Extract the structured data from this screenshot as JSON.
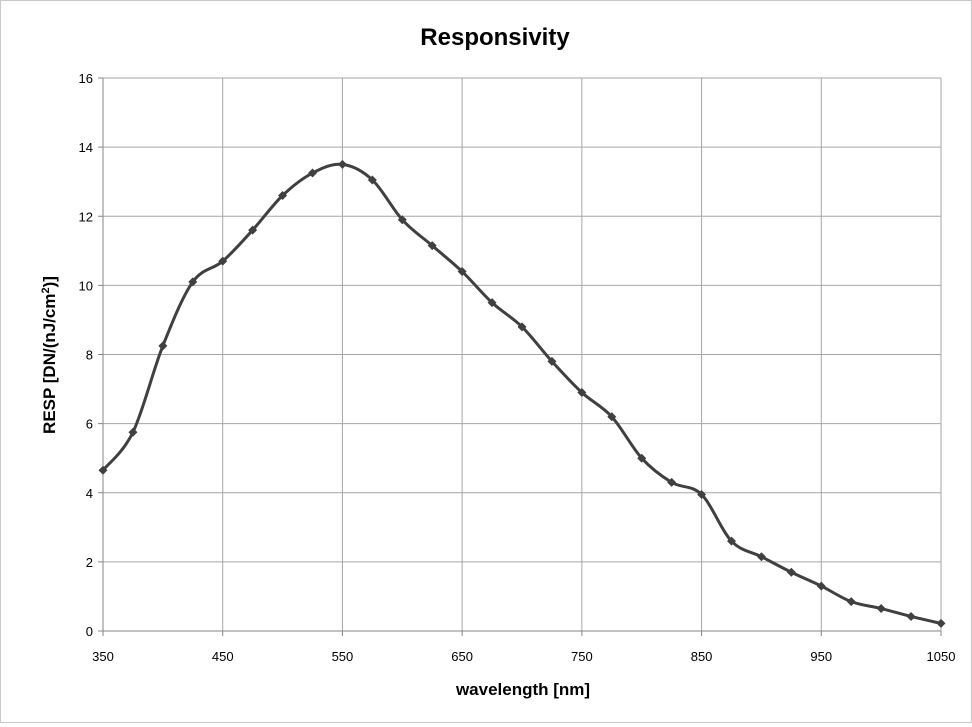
{
  "chart_data": {
    "type": "line",
    "title": "Responsivity",
    "xlabel": "wavelength [nm]",
    "ylabel": {
      "main": "RESP [DN/(nJ/cm",
      "superscript": "2",
      "tail": ")]"
    },
    "xlim": [
      350,
      1050
    ],
    "ylim": [
      0,
      16
    ],
    "x_ticks": [
      350,
      450,
      550,
      650,
      750,
      850,
      950,
      1050
    ],
    "y_ticks": [
      0,
      2,
      4,
      6,
      8,
      10,
      12,
      14,
      16
    ],
    "grid": true,
    "legend": "none",
    "series": [
      {
        "color": "#404040",
        "marker": "diamond",
        "smooth": true,
        "x": [
          350,
          375,
          400,
          425,
          450,
          475,
          500,
          525,
          550,
          575,
          600,
          625,
          650,
          675,
          700,
          725,
          750,
          775,
          800,
          825,
          850,
          875,
          900,
          925,
          950,
          975,
          1000,
          1025,
          1050
        ],
        "values": [
          4.65,
          5.75,
          8.25,
          10.1,
          10.7,
          11.6,
          12.6,
          13.25,
          13.5,
          13.05,
          11.9,
          11.15,
          10.4,
          9.5,
          8.8,
          7.8,
          6.9,
          6.2,
          5.0,
          4.3,
          3.95,
          2.6,
          2.15,
          1.7,
          1.3,
          0.85,
          0.65,
          0.42,
          0.22
        ]
      }
    ]
  }
}
